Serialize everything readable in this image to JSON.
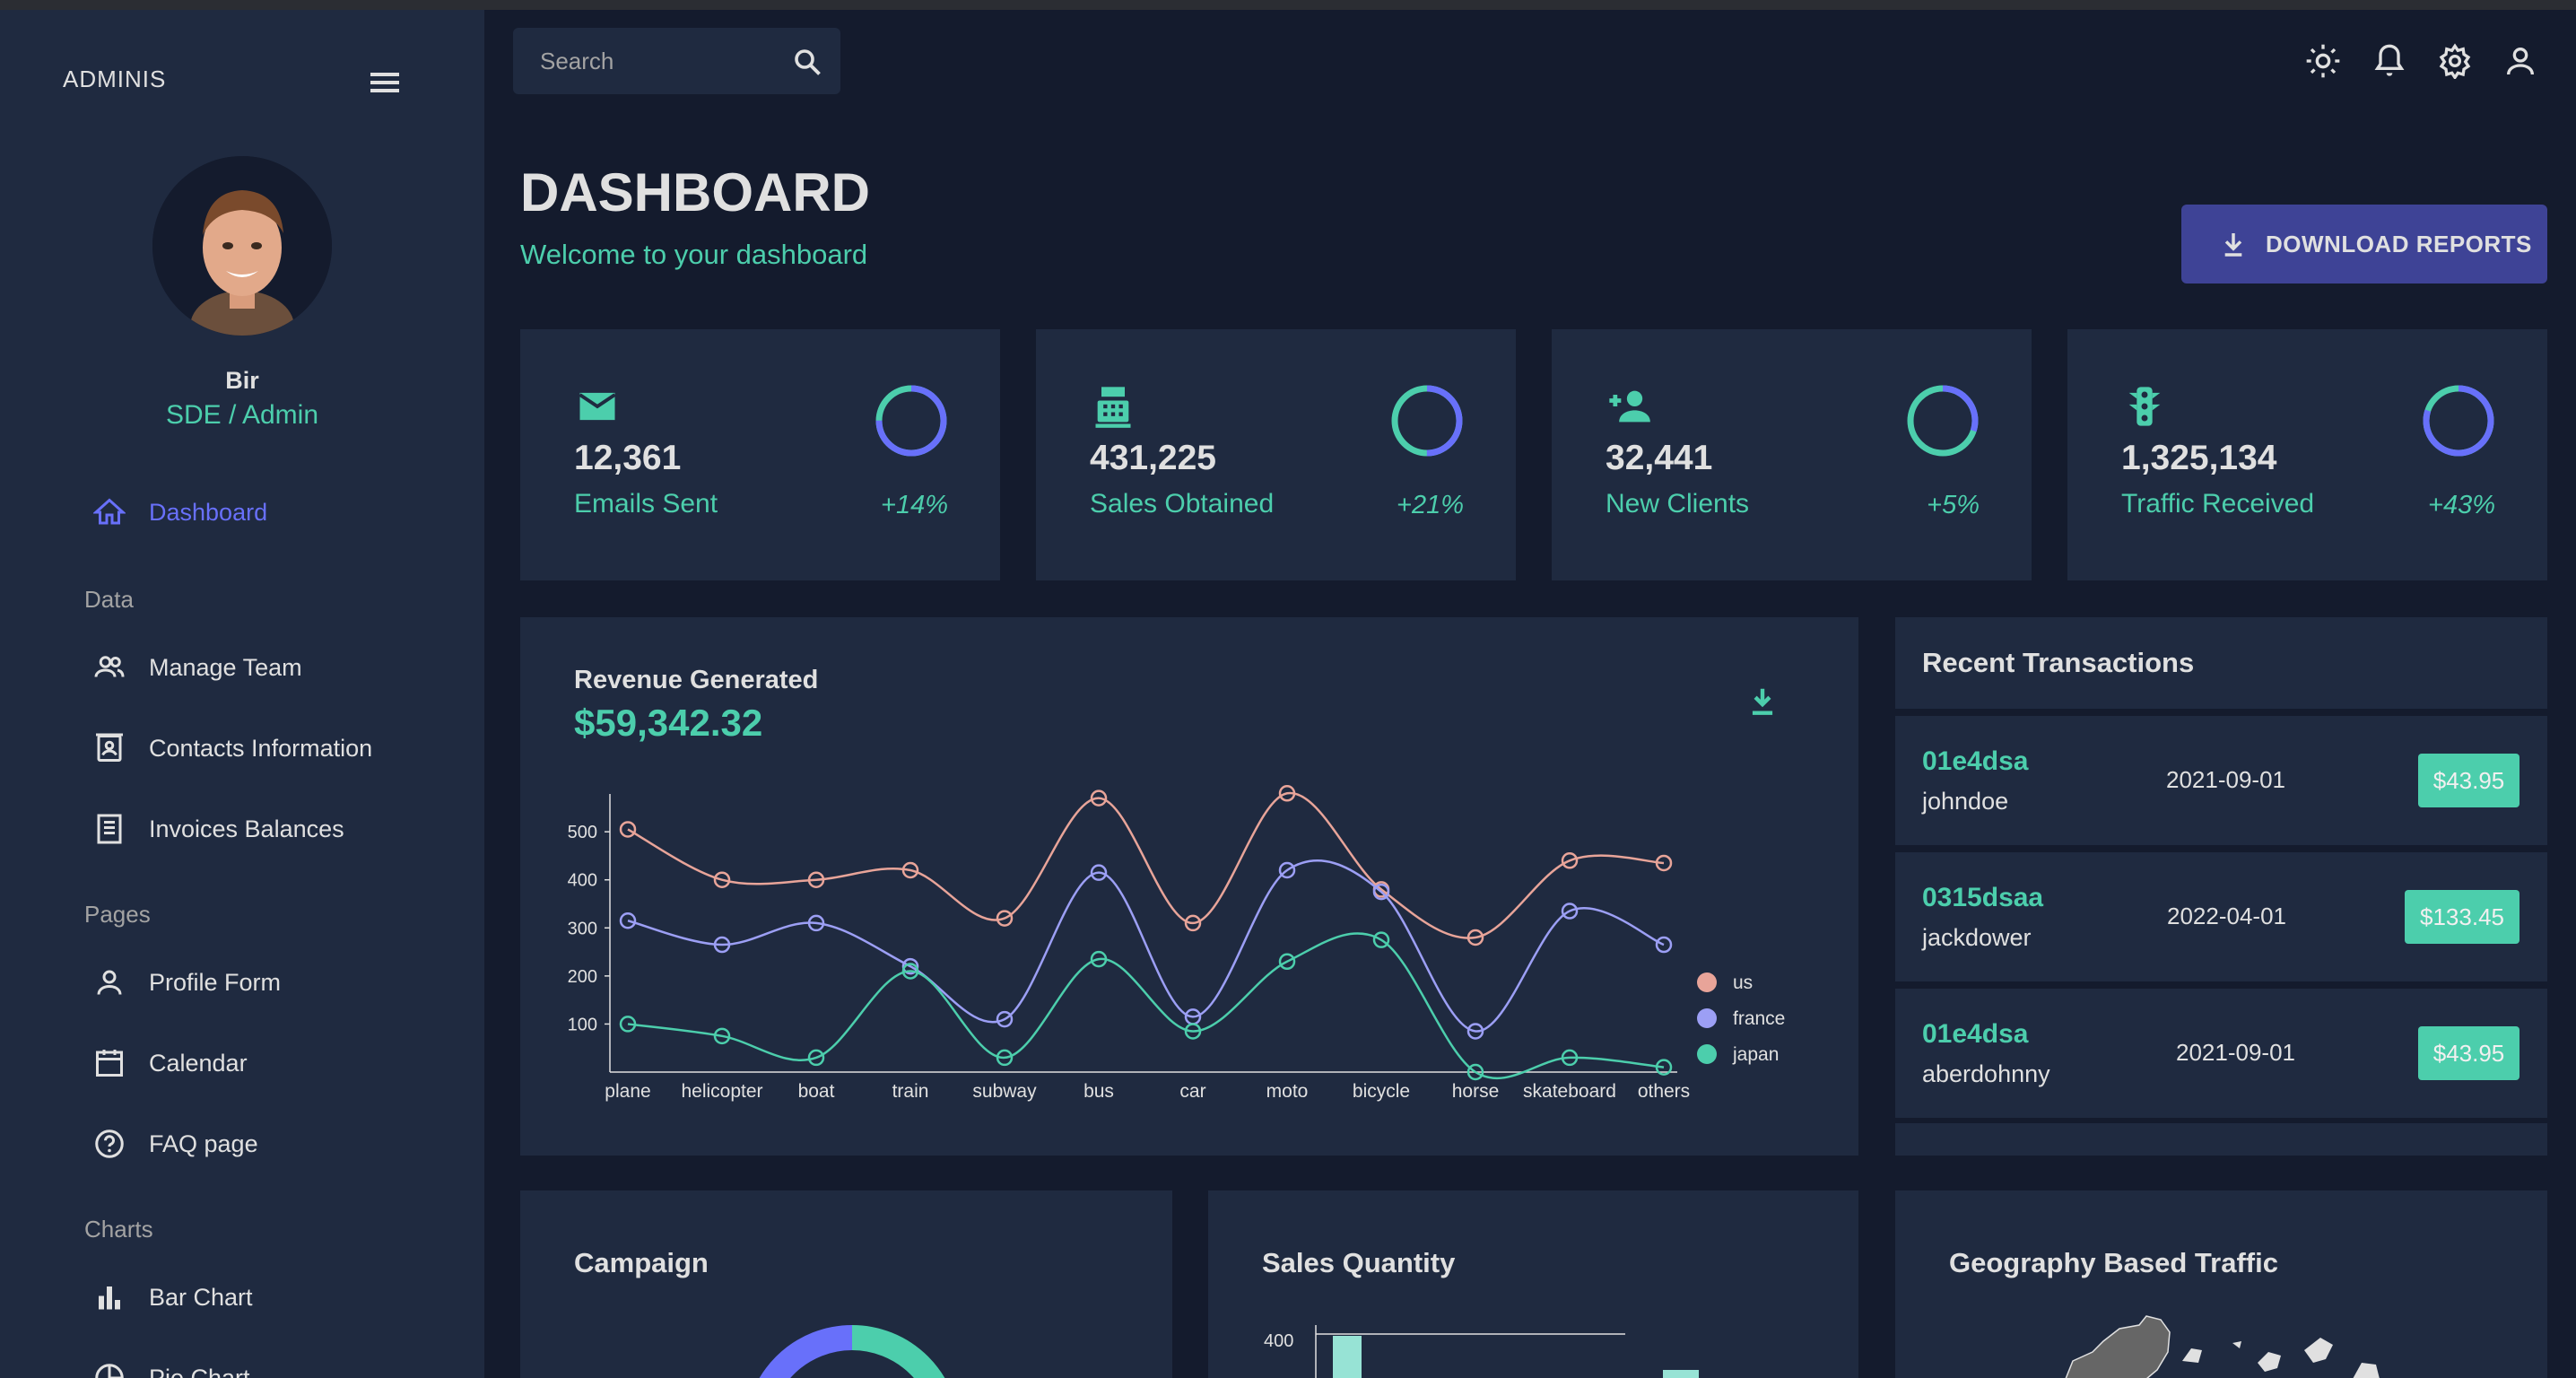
{
  "app": {
    "brand": "ADMINIS"
  },
  "profile": {
    "name": "Bir",
    "role": "SDE / Admin"
  },
  "sidebar": {
    "dashboard": "Dashboard",
    "section_data": "Data",
    "manage_team": "Manage Team",
    "contacts": "Contacts Information",
    "invoices": "Invoices Balances",
    "section_pages": "Pages",
    "profile_form": "Profile Form",
    "calendar": "Calendar",
    "faq": "FAQ page",
    "section_charts": "Charts",
    "bar_chart": "Bar Chart",
    "pie_chart": "Pie Chart"
  },
  "search": {
    "placeholder": "Search"
  },
  "header": {
    "title": "DASHBOARD",
    "subtitle": "Welcome to your dashboard",
    "download_label": "DOWNLOAD REPORTS"
  },
  "stats": [
    {
      "value": "12,361",
      "label": "Emails Sent",
      "increase": "+14%",
      "progress": 0.75,
      "icon": "email-icon"
    },
    {
      "value": "431,225",
      "label": "Sales Obtained",
      "increase": "+21%",
      "progress": 0.5,
      "icon": "point-of-sale-icon"
    },
    {
      "value": "32,441",
      "label": "New Clients",
      "increase": "+5%",
      "progress": 0.3,
      "icon": "person-add-icon"
    },
    {
      "value": "1,325,134",
      "label": "Traffic Received",
      "increase": "+43%",
      "progress": 0.8,
      "icon": "traffic-icon"
    }
  ],
  "revenue": {
    "title": "Revenue Generated",
    "amount": "$59,342.32"
  },
  "chart_data": {
    "type": "line",
    "categories": [
      "plane",
      "helicopter",
      "boat",
      "train",
      "subway",
      "bus",
      "car",
      "moto",
      "bicycle",
      "horse",
      "skateboard",
      "others"
    ],
    "yticks": [
      100,
      200,
      300,
      400,
      500
    ],
    "ylim": [
      0,
      560
    ],
    "legend_position": "right",
    "series": [
      {
        "name": "us",
        "color": "#e8a499",
        "values": [
          505,
          400,
          400,
          420,
          320,
          570,
          310,
          580,
          380,
          280,
          440,
          435
        ]
      },
      {
        "name": "france",
        "color": "#9c9ff5",
        "values": [
          315,
          265,
          310,
          220,
          110,
          415,
          115,
          420,
          375,
          85,
          335,
          265
        ]
      },
      {
        "name": "japan",
        "color": "#4cceac",
        "values": [
          100,
          75,
          30,
          210,
          30,
          235,
          85,
          230,
          275,
          0,
          30,
          10
        ]
      }
    ]
  },
  "transactions": {
    "title": "Recent Transactions",
    "items": [
      {
        "id": "01e4dsa",
        "user": "johndoe",
        "date": "2021-09-01",
        "cost": "$43.95"
      },
      {
        "id": "0315dsaa",
        "user": "jackdower",
        "date": "2022-04-01",
        "cost": "$133.45"
      },
      {
        "id": "01e4dsa",
        "user": "aberdohnny",
        "date": "2021-09-01",
        "cost": "$43.95"
      }
    ]
  },
  "panels": {
    "campaign": "Campaign",
    "sales_quantity": "Sales Quantity",
    "geography": "Geography Based Traffic",
    "sales_tick": "400"
  },
  "colors": {
    "bg": "#141b2d",
    "panel": "#1f2a40",
    "accent_green": "#4cceac",
    "accent_blue": "#6870fa",
    "button": "#3e4396"
  }
}
